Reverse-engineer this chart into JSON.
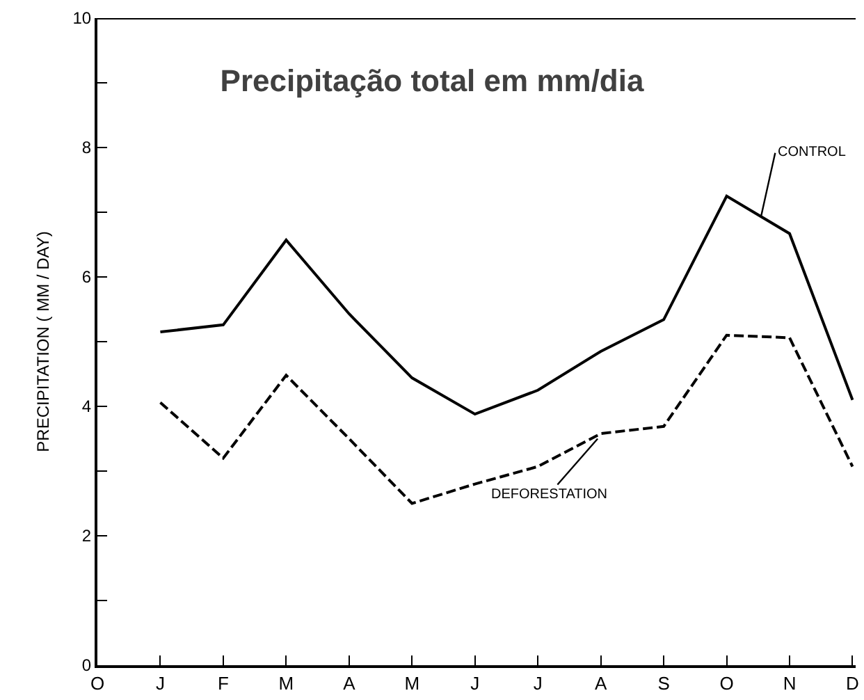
{
  "chart_data": {
    "type": "line",
    "title": "Precipitação total em mm/dia",
    "ylabel": "PRECIPITATION ( MM / DAY)",
    "categories": [
      "O",
      "J",
      "F",
      "M",
      "A",
      "M",
      "J",
      "J",
      "A",
      "S",
      "O",
      "N",
      "D"
    ],
    "series": [
      {
        "name": "CONTROL",
        "color": "#000000",
        "line_style": "solid",
        "values": [
          null,
          5.15,
          5.26,
          6.57,
          5.43,
          4.44,
          3.88,
          4.25,
          4.85,
          5.34,
          7.25,
          6.67,
          4.1
        ]
      },
      {
        "name": "DEFORESTATION",
        "color": "#000000",
        "line_style": "dashed",
        "values": [
          null,
          4.06,
          3.2,
          4.48,
          3.5,
          2.5,
          2.8,
          3.07,
          3.58,
          3.69,
          5.1,
          5.06,
          3.07
        ]
      }
    ],
    "ylim": [
      0,
      10
    ],
    "yticks": [
      0,
      {
        "value": 1,
        "label": null
      },
      2,
      {
        "value": 3,
        "label": null
      },
      4,
      {
        "value": 5,
        "label": null
      },
      6,
      {
        "value": 7,
        "label": null
      },
      8,
      {
        "value": 9,
        "label": null
      },
      10
    ],
    "legend": false,
    "marker": "none"
  }
}
